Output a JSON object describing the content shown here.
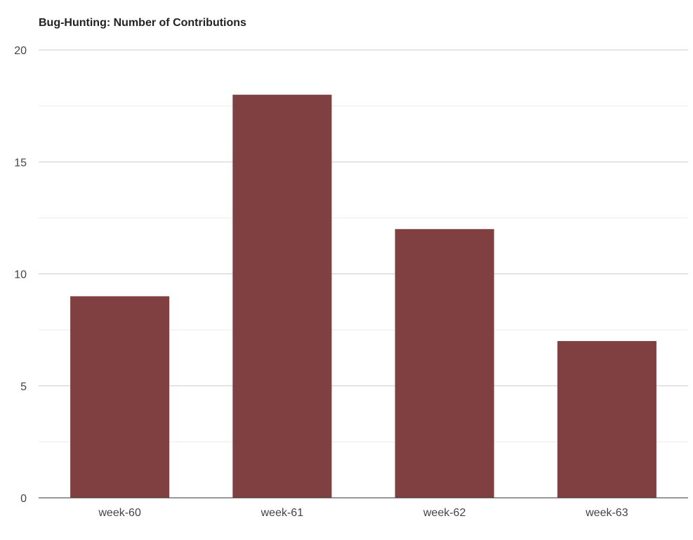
{
  "chart_data": {
    "type": "bar",
    "title": "Bug-Hunting: Number of Contributions",
    "categories": [
      "week-60",
      "week-61",
      "week-62",
      "week-63"
    ],
    "values": [
      9,
      18,
      12,
      7
    ],
    "ylim": [
      0,
      20
    ],
    "yticks": [
      0,
      5,
      10,
      15,
      20
    ],
    "xlabel": "",
    "ylabel": "",
    "grid": true,
    "legend": "none",
    "bar_color": "#803f41"
  }
}
